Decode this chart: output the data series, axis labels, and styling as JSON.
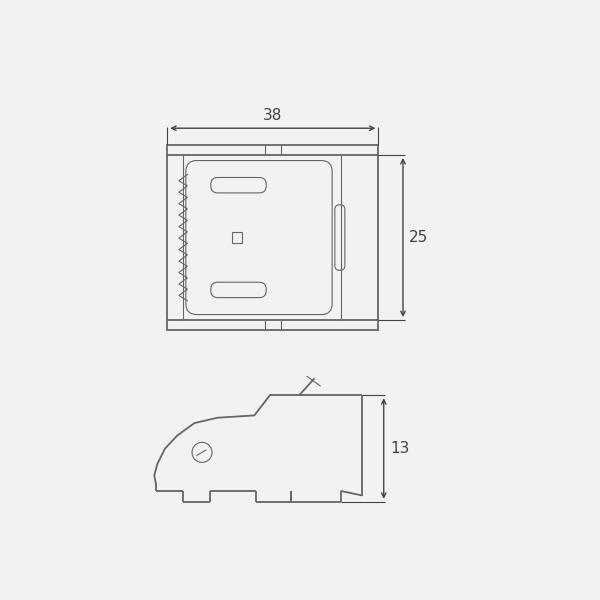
{
  "bg_color": "#f2f2f2",
  "line_color": "#666666",
  "dim_color": "#444444",
  "dim_38": "38",
  "dim_25": "25",
  "dim_13": "13",
  "lw": 1.3,
  "lw_thin": 0.8,
  "lw_dim": 1.0
}
